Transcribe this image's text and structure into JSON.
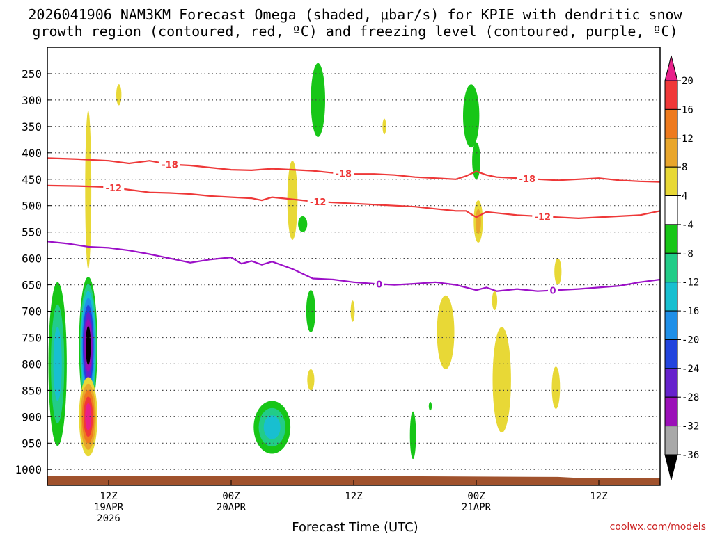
{
  "chart_data": {
    "type": "time-height cross section",
    "title_line1": "2026041906 NAM3KM Forecast Omega (shaded, μbar/s) for KPIE with dendritic snow",
    "title_line2": "growth region (contoured, red, ºC) and freezing level (contoured, purple, ºC)",
    "xlabel": "Forecast Time (UTC)",
    "credit": "coolwx.com/models",
    "x_range_hours": [
      0,
      60
    ],
    "y_range_hpa": [
      200,
      1030
    ],
    "y_ticks": [
      250,
      300,
      350,
      400,
      450,
      500,
      550,
      600,
      650,
      700,
      750,
      800,
      850,
      900,
      950,
      1000
    ],
    "x_ticks": [
      {
        "hour": 6,
        "lines": [
          "12Z",
          "19APR",
          "2026"
        ]
      },
      {
        "hour": 18,
        "lines": [
          "00Z",
          "20APR"
        ]
      },
      {
        "hour": 30,
        "lines": [
          "12Z"
        ]
      },
      {
        "hour": 42,
        "lines": [
          "00Z",
          "21APR"
        ]
      },
      {
        "hour": 54,
        "lines": [
          "12Z"
        ]
      }
    ],
    "colorbar": {
      "labels": [
        "20",
        "16",
        "12",
        "8",
        "4",
        "-4",
        "-8",
        "-12",
        "-16",
        "-20",
        "-24",
        "-28",
        "-32",
        "-36"
      ],
      "colors": [
        "#e8208a",
        "#f03838",
        "#ee7a1e",
        "#e9a62c",
        "#e8d836",
        "#ffffff",
        "#17c617",
        "#22cc88",
        "#18bfd0",
        "#1f8fe8",
        "#2244dd",
        "#6622cc",
        "#9b10b8",
        "#a8a8a8",
        "#000000"
      ]
    },
    "contours": [
      {
        "name": "dgz-minus-18",
        "label": "-18",
        "color": "#ee3838",
        "hours": [
          0,
          3,
          6,
          8,
          10,
          12,
          14,
          16,
          18,
          20,
          22,
          24,
          26,
          28,
          30,
          32,
          34,
          36,
          38,
          40,
          41,
          42,
          43,
          44,
          46,
          48,
          50,
          52,
          54,
          56,
          58,
          60
        ],
        "hpa": [
          410,
          412,
          415,
          420,
          415,
          422,
          424,
          428,
          432,
          433,
          430,
          432,
          434,
          438,
          440,
          440,
          442,
          446,
          448,
          450,
          444,
          435,
          442,
          446,
          448,
          450,
          452,
          450,
          448,
          452,
          454,
          455
        ],
        "label_hours": [
          12,
          29,
          47
        ]
      },
      {
        "name": "dgz-minus-12",
        "label": "-12",
        "color": "#ee3838",
        "hours": [
          0,
          3,
          6,
          8,
          10,
          12,
          14,
          16,
          18,
          20,
          21,
          22,
          24,
          26,
          28,
          30,
          32,
          34,
          36,
          38,
          40,
          41,
          42,
          43,
          44,
          46,
          48,
          50,
          52,
          54,
          56,
          58,
          60
        ],
        "hpa": [
          462,
          463,
          465,
          470,
          475,
          476,
          478,
          482,
          484,
          486,
          490,
          484,
          488,
          492,
          494,
          496,
          498,
          500,
          502,
          506,
          510,
          510,
          522,
          512,
          514,
          518,
          520,
          522,
          524,
          522,
          520,
          518,
          510
        ],
        "label_hours": [
          6.5,
          26.5,
          48.5
        ]
      },
      {
        "name": "freezing-level",
        "label": "0",
        "color": "#9c10c8",
        "hours": [
          0,
          2,
          4,
          6,
          8,
          10,
          12,
          14,
          16,
          18,
          19,
          20,
          21,
          22,
          24,
          26,
          28,
          30,
          32,
          34,
          36,
          38,
          40,
          42,
          43,
          44,
          46,
          48,
          50,
          52,
          54,
          56,
          58,
          60
        ],
        "hpa": [
          568,
          572,
          578,
          580,
          585,
          592,
          600,
          608,
          602,
          598,
          610,
          605,
          612,
          606,
          620,
          638,
          640,
          645,
          648,
          650,
          648,
          645,
          650,
          660,
          655,
          662,
          658,
          662,
          660,
          658,
          655,
          652,
          645,
          640
        ],
        "label_hours": [
          32.5,
          49.5
        ]
      }
    ],
    "omega_features": [
      {
        "hour": 1.0,
        "hpa": 800,
        "dh": 0.9,
        "dp": 155,
        "levels": [
          "#17c617",
          "#22cc88",
          "#18bfd0"
        ]
      },
      {
        "hour": 4.0,
        "hpa": 765,
        "dh": 0.9,
        "dp": 130,
        "levels": [
          "#17c617",
          "#22cc88",
          "#18bfd0",
          "#1f8fe8",
          "#2244dd",
          "#6622cc",
          "#9b10b8",
          "#000000"
        ]
      },
      {
        "hour": 4.0,
        "hpa": 900,
        "dh": 0.9,
        "dp": 75,
        "levels": [
          "#e8d836",
          "#e9a62c",
          "#ee7a1e",
          "#f03838",
          "#e8208a"
        ]
      },
      {
        "hour": 4.0,
        "hpa": 470,
        "dh": 0.3,
        "dp": 150,
        "levels": [
          "#e8d836"
        ]
      },
      {
        "hour": 7.0,
        "hpa": 290,
        "dh": 0.25,
        "dp": 20,
        "levels": [
          "#e8d836"
        ]
      },
      {
        "hour": 22.0,
        "hpa": 920,
        "dh": 1.8,
        "dp": 50,
        "levels": [
          "#17c617",
          "#22cc88",
          "#18bfd0"
        ]
      },
      {
        "hour": 24.0,
        "hpa": 490,
        "dh": 0.5,
        "dp": 75,
        "levels": [
          "#e8d836"
        ]
      },
      {
        "hour": 25.0,
        "hpa": 535,
        "dh": 0.45,
        "dp": 15,
        "levels": [
          "#17c617"
        ]
      },
      {
        "hour": 25.8,
        "hpa": 700,
        "dh": 0.45,
        "dp": 40,
        "levels": [
          "#17c617"
        ]
      },
      {
        "hour": 25.8,
        "hpa": 830,
        "dh": 0.35,
        "dp": 20,
        "levels": [
          "#e8d836"
        ]
      },
      {
        "hour": 26.5,
        "hpa": 300,
        "dh": 0.7,
        "dp": 70,
        "levels": [
          "#17c617"
        ]
      },
      {
        "hour": 29.9,
        "hpa": 700,
        "dh": 0.2,
        "dp": 20,
        "levels": [
          "#e8d836"
        ]
      },
      {
        "hour": 33.0,
        "hpa": 350,
        "dh": 0.18,
        "dp": 15,
        "levels": [
          "#e8d836"
        ]
      },
      {
        "hour": 35.8,
        "hpa": 935,
        "dh": 0.3,
        "dp": 45,
        "levels": [
          "#17c617"
        ]
      },
      {
        "hour": 37.5,
        "hpa": 880,
        "dh": 0.15,
        "dp": 8,
        "levels": [
          "#17c617"
        ]
      },
      {
        "hour": 39.0,
        "hpa": 740,
        "dh": 0.85,
        "dp": 70,
        "levels": [
          "#e8d836"
        ]
      },
      {
        "hour": 41.5,
        "hpa": 330,
        "dh": 0.8,
        "dp": 60,
        "levels": [
          "#17c617"
        ]
      },
      {
        "hour": 42.0,
        "hpa": 415,
        "dh": 0.4,
        "dp": 35,
        "levels": [
          "#17c617"
        ]
      },
      {
        "hour": 42.2,
        "hpa": 530,
        "dh": 0.45,
        "dp": 40,
        "levels": [
          "#e8d836",
          "#e9a62c"
        ]
      },
      {
        "hour": 43.8,
        "hpa": 680,
        "dh": 0.25,
        "dp": 18,
        "levels": [
          "#e8d836"
        ]
      },
      {
        "hour": 44.5,
        "hpa": 830,
        "dh": 0.9,
        "dp": 100,
        "levels": [
          "#e8d836"
        ]
      },
      {
        "hour": 50.0,
        "hpa": 625,
        "dh": 0.35,
        "dp": 25,
        "levels": [
          "#e8d836"
        ]
      },
      {
        "hour": 49.8,
        "hpa": 845,
        "dh": 0.4,
        "dp": 40,
        "levels": [
          "#e8d836"
        ]
      }
    ],
    "terrain": {
      "color": "#a0522d",
      "hours": [
        0,
        26,
        50,
        52,
        60
      ],
      "hpa": [
        1012,
        1012,
        1014,
        1016,
        1016
      ]
    }
  }
}
